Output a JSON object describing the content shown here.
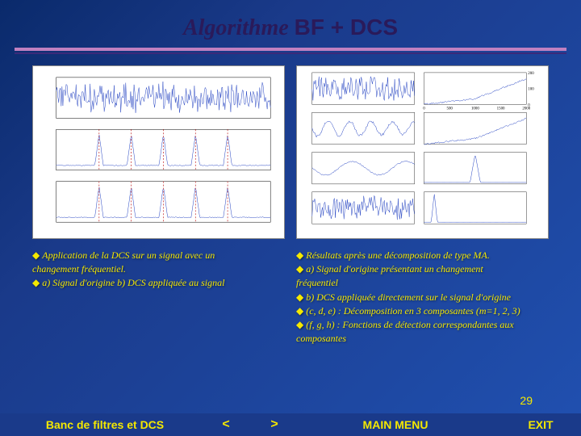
{
  "title": {
    "prefix": "Algorithme ",
    "suffix": "BF + DCS"
  },
  "page_number": "29",
  "left_text": {
    "l1": "Application de la DCS sur un signal avec un",
    "l2": "changement fréquentiel.",
    "l3": "a) Signal d'origine   b) DCS appliquée au signal"
  },
  "right_text": {
    "l1": "Résultats après une décomposition de type MA.",
    "l2": "a) Signal d'origine présentant un changement",
    "l3": "fréquentiel",
    "l4": "b) DCS appliquée directement sur le signal d'origine",
    "l5": "(c, d, e) : Décomposition en 3 composantes (m=1, 2, 3)",
    "l6": "(f, g, h) : Fonctions de détection correspondantes aux",
    "l7": "composantes"
  },
  "nav": {
    "banc": "Banc de filtres et DCS",
    "prev": "<",
    "next": ">",
    "main": "MAIN MENU",
    "exit": "EXIT"
  },
  "chart_left": {
    "panels": 3,
    "signal_color": "#2040c0",
    "axis_color": "#000000",
    "detection_marker_color": "#c02020",
    "background": "#ffffff",
    "titles": [
      "",
      "",
      ""
    ],
    "x_range": [
      0,
      1000
    ],
    "panel_types": [
      "dense_noise",
      "detection_spikes",
      "detection_spikes"
    ],
    "spike_positions": [
      200,
      350,
      500,
      650,
      800
    ]
  },
  "chart_right": {
    "rows": 4,
    "cols": 2,
    "signal_color": "#2040c0",
    "axis_color": "#000000",
    "background": "#ffffff",
    "x_range": [
      0,
      2000
    ],
    "x_ticks": [
      0,
      500,
      1000,
      1500,
      2000
    ],
    "y_ticks_samples": [
      0,
      100,
      200
    ],
    "panel_types": [
      [
        "dense_noise",
        "step"
      ],
      [
        "wave",
        "step"
      ],
      [
        "sparse_wave",
        "spike_single"
      ],
      [
        "dense_noise",
        "flat_spike"
      ]
    ]
  }
}
